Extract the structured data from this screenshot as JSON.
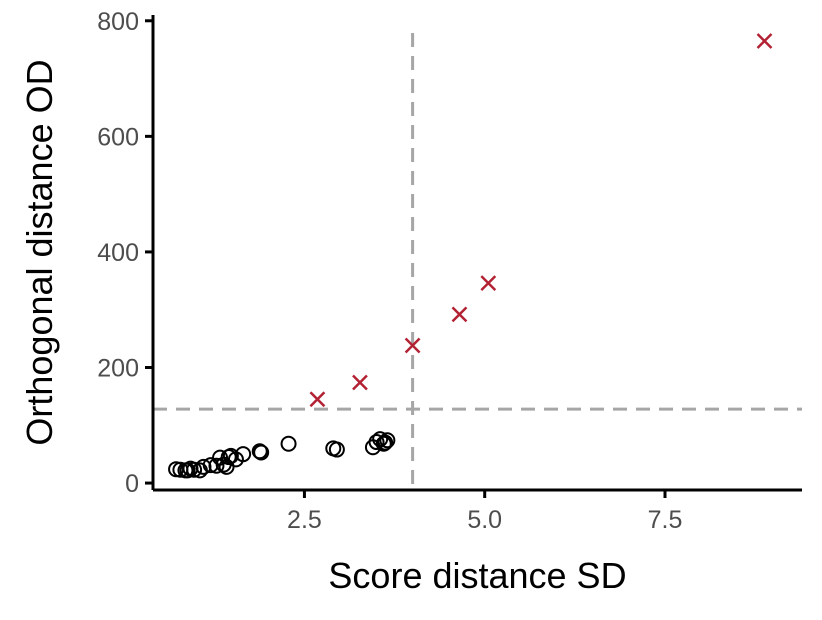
{
  "chart_data": {
    "type": "scatter",
    "xlabel": "Score distance SD",
    "ylabel": "Orthogonal distance OD",
    "xlim": [
      0.4,
      9.4
    ],
    "ylim": [
      -12,
      810
    ],
    "x_ticks": [
      2.5,
      5.0,
      7.5
    ],
    "x_tick_labels": [
      "2.5",
      "5.0",
      "7.5"
    ],
    "y_ticks": [
      0,
      200,
      400,
      600,
      800
    ],
    "y_tick_labels": [
      "0",
      "200",
      "400",
      "600",
      "800"
    ],
    "grid": false,
    "cutoffs": {
      "sd": 4.0,
      "od": 128
    },
    "cutoff_color": "#a6a6a6",
    "series": [
      {
        "marker": "circle",
        "color": "#000000",
        "points": [
          [
            0.72,
            24
          ],
          [
            0.78,
            23
          ],
          [
            0.85,
            22
          ],
          [
            0.88,
            22
          ],
          [
            0.92,
            25
          ],
          [
            0.97,
            23
          ],
          [
            1.05,
            22
          ],
          [
            1.1,
            28
          ],
          [
            1.2,
            31
          ],
          [
            1.28,
            30
          ],
          [
            1.33,
            44
          ],
          [
            1.38,
            32
          ],
          [
            1.42,
            28
          ],
          [
            1.45,
            45
          ],
          [
            1.48,
            47
          ],
          [
            1.55,
            41
          ],
          [
            1.65,
            50
          ],
          [
            1.88,
            55
          ],
          [
            1.9,
            53
          ],
          [
            2.28,
            68
          ],
          [
            2.9,
            60
          ],
          [
            2.95,
            58
          ],
          [
            3.45,
            62
          ],
          [
            3.5,
            71
          ],
          [
            3.55,
            76
          ],
          [
            3.6,
            68
          ],
          [
            3.62,
            70
          ],
          [
            3.65,
            74
          ]
        ]
      },
      {
        "marker": "x",
        "color": "#b22234",
        "points": [
          [
            2.68,
            145
          ],
          [
            3.27,
            174
          ],
          [
            4.0,
            238
          ],
          [
            4.65,
            292
          ],
          [
            5.05,
            346
          ],
          [
            8.88,
            765
          ]
        ]
      }
    ]
  }
}
